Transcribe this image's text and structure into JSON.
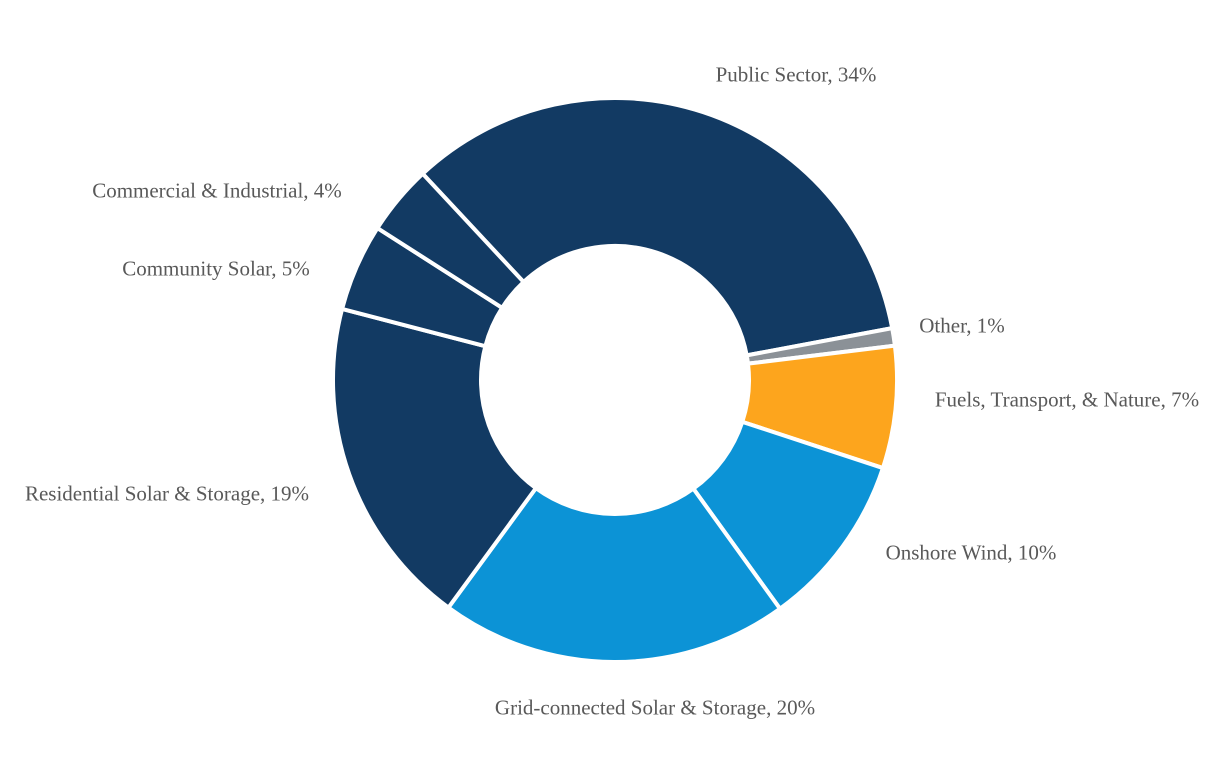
{
  "chart_data": {
    "type": "pie",
    "subtype": "donut",
    "title": "",
    "unit": "%",
    "legend": "none",
    "labels_position": "outside",
    "start_angle_deg": -43,
    "clockwise": true,
    "hole_ratio": 0.475,
    "label_color": "#595959",
    "separator_color": "#FFFFFF",
    "slices": [
      {
        "category": "Public Sector",
        "value": 34,
        "color": "#123A63",
        "label": "Public Sector, 34%"
      },
      {
        "category": "Other",
        "value": 1,
        "color": "#8B9197",
        "label": "Other, 1%"
      },
      {
        "category": "Fuels, Transport, & Nature",
        "value": 7,
        "color": "#FDA51D",
        "label": "Fuels, Transport, & Nature, 7%"
      },
      {
        "category": "Onshore Wind",
        "value": 10,
        "color": "#0C93D6",
        "label": "Onshore Wind, 10%"
      },
      {
        "category": "Grid-connected Solar & Storage",
        "value": 20,
        "color": "#0C93D6",
        "label": "Grid-connected Solar & Storage, 20%"
      },
      {
        "category": "Residential Solar & Storage",
        "value": 19,
        "color": "#123A63",
        "label": "Residential Solar & Storage, 19%"
      },
      {
        "category": "Community Solar",
        "value": 5,
        "color": "#123A63",
        "label": "Community Solar, 5%"
      },
      {
        "category": "Commercial & Industrial",
        "value": 4,
        "color": "#123A63",
        "label": "Commercial & Industrial, 4%"
      }
    ]
  }
}
